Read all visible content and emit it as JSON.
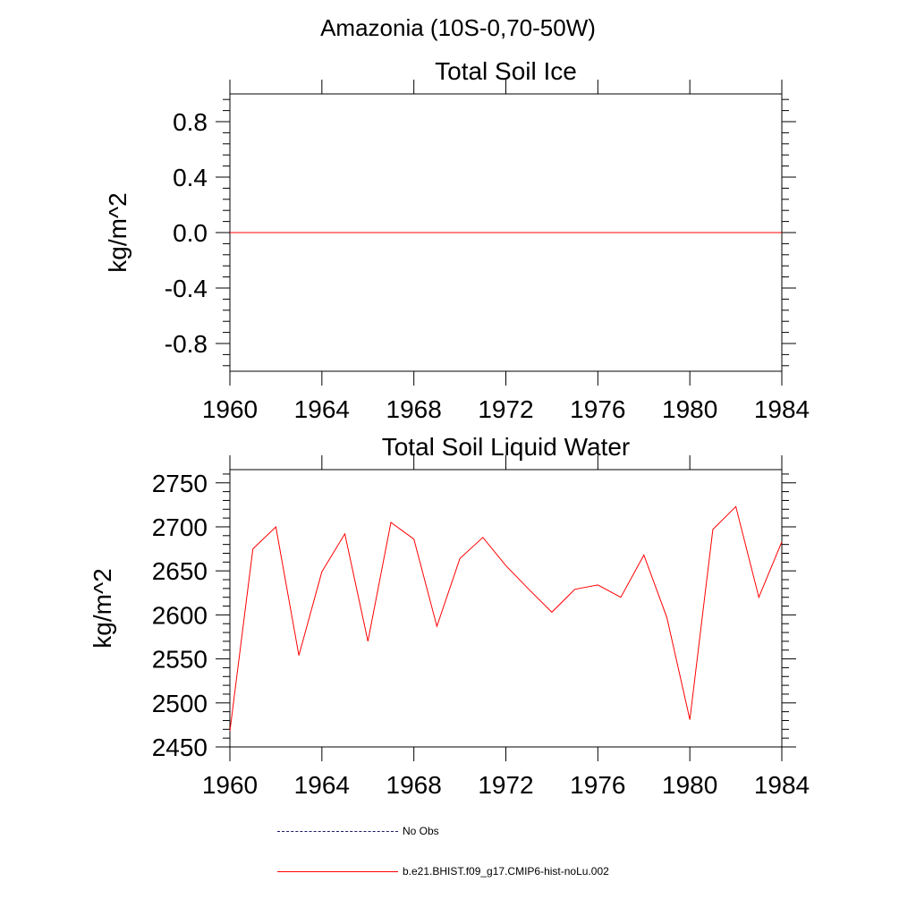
{
  "figure": {
    "title": "Amazonia (10S-0,70-50W)"
  },
  "colors": {
    "series": "#ff0000",
    "obs": "#1a1a66",
    "axis": "#000000"
  },
  "chart_data": [
    {
      "type": "line",
      "title": "Total Soil Ice",
      "xlabel": "",
      "ylabel": "kg/m^2",
      "xlim": [
        1960,
        1984
      ],
      "ylim": [
        -1.0,
        1.0
      ],
      "xticks": [
        "1960",
        "1964",
        "1968",
        "1972",
        "1976",
        "1980",
        "1984"
      ],
      "xtick_values": [
        1960,
        1964,
        1968,
        1972,
        1976,
        1980,
        1984
      ],
      "yticks": [
        "0.8",
        "0.4",
        "0.0",
        "-0.4",
        "-0.8"
      ],
      "ytick_values": [
        0.8,
        0.4,
        0.0,
        -0.4,
        -0.8
      ],
      "x": [
        1960,
        1961,
        1962,
        1963,
        1964,
        1965,
        1966,
        1967,
        1968,
        1969,
        1970,
        1971,
        1972,
        1973,
        1974,
        1975,
        1976,
        1977,
        1978,
        1979,
        1980,
        1981,
        1982,
        1983,
        1984
      ],
      "series": [
        {
          "name": "b.e21.BHIST.f09_g17.CMIP6-hist-noLu.002",
          "values": [
            0,
            0,
            0,
            0,
            0,
            0,
            0,
            0,
            0,
            0,
            0,
            0,
            0,
            0,
            0,
            0,
            0,
            0,
            0,
            0,
            0,
            0,
            0,
            0,
            0
          ]
        }
      ]
    },
    {
      "type": "line",
      "title": "Total Soil Liquid Water",
      "xlabel": "",
      "ylabel": "kg/m^2",
      "xlim": [
        1960,
        1984
      ],
      "ylim": [
        2450,
        2765
      ],
      "xticks": [
        "1960",
        "1964",
        "1968",
        "1972",
        "1976",
        "1980",
        "1984"
      ],
      "xtick_values": [
        1960,
        1964,
        1968,
        1972,
        1976,
        1980,
        1984
      ],
      "yticks": [
        "2750",
        "2700",
        "2650",
        "2600",
        "2550",
        "2500",
        "2450"
      ],
      "ytick_values": [
        2750,
        2700,
        2650,
        2600,
        2550,
        2500,
        2450
      ],
      "x": [
        1960,
        1961,
        1962,
        1963,
        1964,
        1965,
        1966,
        1967,
        1968,
        1969,
        1970,
        1971,
        1972,
        1973,
        1974,
        1975,
        1976,
        1977,
        1978,
        1979,
        1980,
        1981,
        1982,
        1983,
        1984
      ],
      "series": [
        {
          "name": "b.e21.BHIST.f09_g17.CMIP6-hist-noLu.002",
          "values": [
            2468,
            2675,
            2700,
            2554,
            2649,
            2692,
            2570,
            2705,
            2686,
            2587,
            2664,
            2688,
            2656,
            2629,
            2603,
            2629,
            2634,
            2620,
            2668,
            2597,
            2481,
            2697,
            2723,
            2620,
            2683
          ]
        }
      ]
    }
  ],
  "legend": [
    {
      "label": "No Obs",
      "style": "dashed"
    },
    {
      "label": "b.e21.BHIST.f09_g17.CMIP6-hist-noLu.002",
      "style": "solid"
    }
  ]
}
